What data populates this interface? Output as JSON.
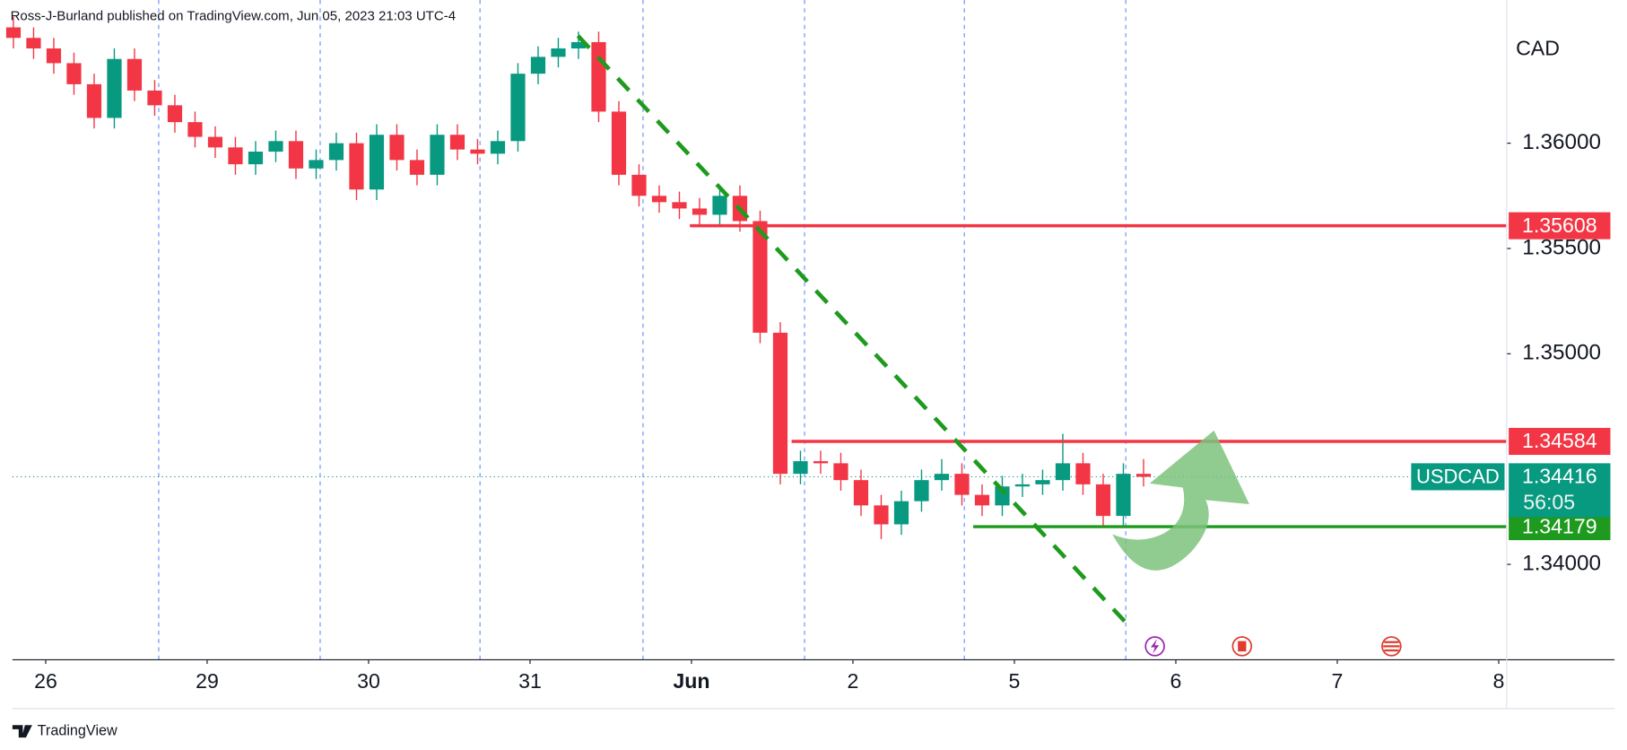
{
  "chart_data": {
    "type": "candlestick",
    "header": "Ross-J-Burland published on TradingView.com, Jun 05, 2023 21:03 UTC-4",
    "currency": "CAD",
    "symbol": "USDCAD",
    "countdown": "56:05",
    "brand": "TradingView",
    "up_color": "#089981",
    "down_color": "#f23645",
    "x": [
      -0.2,
      -0.075,
      0.05,
      0.175,
      0.3,
      0.425,
      0.55,
      0.675,
      0.8,
      0.925,
      1.05,
      1.175,
      1.3,
      1.425,
      1.55,
      1.675,
      1.8,
      1.925,
      2.05,
      2.175,
      2.3,
      2.425,
      2.55,
      2.675,
      2.8,
      2.925,
      3.05,
      3.175,
      3.3,
      3.425,
      3.55,
      3.675,
      3.8,
      3.925,
      4.05,
      4.175,
      4.3,
      4.425,
      4.55,
      4.675,
      4.8,
      4.925,
      5.05,
      5.175,
      5.3,
      5.425,
      5.55,
      5.675,
      5.8,
      5.925,
      6.05,
      6.175,
      6.3,
      6.425,
      6.55,
      6.675,
      6.8
    ],
    "open": [
      1.3655,
      1.365,
      1.3645,
      1.3638,
      1.3628,
      1.3612,
      1.364,
      1.3625,
      1.3618,
      1.361,
      1.3603,
      1.3598,
      1.359,
      1.3596,
      1.3601,
      1.3588,
      1.3592,
      1.36,
      1.3578,
      1.3604,
      1.3592,
      1.3585,
      1.3604,
      1.3597,
      1.3595,
      1.3601,
      1.3633,
      1.3641,
      1.3645,
      1.3648,
      1.3615,
      1.3585,
      1.3575,
      1.3572,
      1.3569,
      1.3566,
      1.3575,
      1.3563,
      1.351,
      1.3443,
      1.3449,
      1.3448,
      1.344,
      1.3428,
      1.3419,
      1.343,
      1.344,
      1.3443,
      1.3433,
      1.3428,
      1.3437,
      1.3438,
      1.344,
      1.3448,
      1.3438,
      1.3423,
      1.3443
    ],
    "high": [
      1.366,
      1.3655,
      1.365,
      1.3643,
      1.3633,
      1.3645,
      1.3645,
      1.363,
      1.3623,
      1.3615,
      1.3608,
      1.3603,
      1.3601,
      1.3606,
      1.3606,
      1.3597,
      1.3605,
      1.3605,
      1.3609,
      1.3609,
      1.3597,
      1.3609,
      1.3609,
      1.3602,
      1.3606,
      1.3638,
      1.3646,
      1.365,
      1.3653,
      1.3653,
      1.362,
      1.359,
      1.358,
      1.3577,
      1.3574,
      1.358,
      1.358,
      1.3568,
      1.3515,
      1.3454,
      1.3454,
      1.3453,
      1.3445,
      1.3433,
      1.3435,
      1.3445,
      1.345,
      1.3448,
      1.3438,
      1.3442,
      1.3443,
      1.3445,
      1.3462,
      1.3453,
      1.3443,
      1.3448,
      1.345
    ],
    "low": [
      1.3645,
      1.364,
      1.3633,
      1.3623,
      1.3607,
      1.3607,
      1.362,
      1.3613,
      1.3605,
      1.3598,
      1.3593,
      1.3585,
      1.3585,
      1.3591,
      1.3583,
      1.3583,
      1.3587,
      1.3573,
      1.3573,
      1.3587,
      1.358,
      1.358,
      1.3592,
      1.359,
      1.359,
      1.3596,
      1.3628,
      1.3636,
      1.364,
      1.361,
      1.358,
      1.357,
      1.3567,
      1.3564,
      1.3561,
      1.3561,
      1.3558,
      1.3505,
      1.3438,
      1.3438,
      1.3443,
      1.3435,
      1.3423,
      1.3412,
      1.3414,
      1.3425,
      1.3435,
      1.3428,
      1.3423,
      1.3423,
      1.3432,
      1.3433,
      1.3435,
      1.3433,
      1.3418,
      1.3418,
      1.3437
    ],
    "close": [
      1.365,
      1.3645,
      1.3638,
      1.3628,
      1.3612,
      1.364,
      1.3625,
      1.3618,
      1.361,
      1.3603,
      1.3598,
      1.359,
      1.3596,
      1.3601,
      1.3588,
      1.3592,
      1.36,
      1.3578,
      1.3604,
      1.3592,
      1.3585,
      1.3604,
      1.3597,
      1.3595,
      1.3601,
      1.3633,
      1.3641,
      1.3645,
      1.3648,
      1.3615,
      1.3585,
      1.3575,
      1.3572,
      1.3569,
      1.3566,
      1.3575,
      1.3563,
      1.351,
      1.3443,
      1.3449,
      1.3448,
      1.344,
      1.3428,
      1.3419,
      1.343,
      1.344,
      1.3443,
      1.3433,
      1.3428,
      1.3437,
      1.3438,
      1.344,
      1.3448,
      1.3438,
      1.3423,
      1.3443,
      1.34416
    ],
    "xlim": [
      -0.206,
      9.049
    ],
    "xticks": [
      {
        "value": 0,
        "label": "26"
      },
      {
        "value": 1,
        "label": "29"
      },
      {
        "value": 2,
        "label": "30"
      },
      {
        "value": 3,
        "label": "31"
      },
      {
        "value": 4,
        "label": "Jun"
      },
      {
        "value": 5,
        "label": "2"
      },
      {
        "value": 6,
        "label": "5"
      },
      {
        "value": 7,
        "label": "6"
      },
      {
        "value": 8,
        "label": "7"
      },
      {
        "value": 9,
        "label": "8"
      }
    ],
    "ylim": [
      1.33547,
      1.3668
    ],
    "yticks": [
      {
        "value": 1.36,
        "label": "1.36000"
      },
      {
        "value": 1.355,
        "label": "1.35500"
      },
      {
        "value": 1.35,
        "label": "1.35000"
      },
      {
        "value": 1.34,
        "label": "1.34000"
      }
    ],
    "session_lines": [
      0.7,
      1.7,
      2.69,
      3.7,
      4.7,
      5.69,
      6.69
    ],
    "levels": [
      {
        "value": 1.35608,
        "color": "#f23645",
        "x_start": 3.99
      },
      {
        "value": 1.34584,
        "color": "#f23645",
        "x_start": 4.62
      },
      {
        "value": 1.34179,
        "color": "#1e9a1e",
        "x_start": 5.745
      }
    ],
    "trendline": {
      "x": [
        3.297,
        6.69
      ],
      "y": [
        1.3651,
        1.33724
      ],
      "color": "#1e9a1e"
    },
    "last_price": 1.34416
  }
}
